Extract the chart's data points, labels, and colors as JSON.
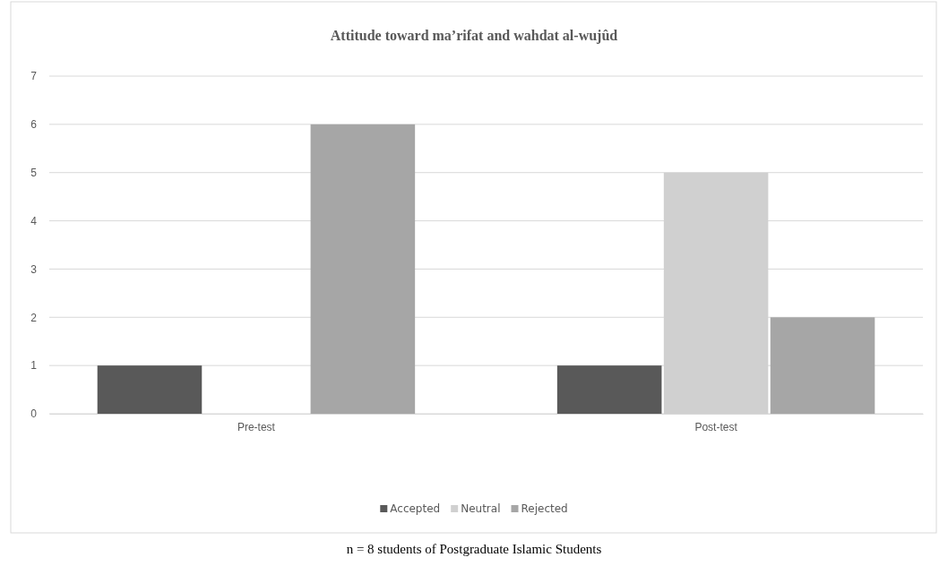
{
  "chart_data": {
    "type": "bar",
    "title": "Attitude toward ma’rifat and wahdat al-wujûd",
    "categories": [
      "Pre-test",
      "Post-test"
    ],
    "series": [
      {
        "name": "Accepted",
        "color": "#595959",
        "values": [
          1,
          1
        ]
      },
      {
        "name": "Neutral",
        "color": "#d0d0d0",
        "values": [
          0,
          5
        ]
      },
      {
        "name": "Rejected",
        "color": "#a6a6a6",
        "values": [
          6,
          2
        ]
      }
    ],
    "ylim": [
      0,
      7
    ],
    "yticks": [
      0,
      1,
      2,
      3,
      4,
      5,
      6,
      7
    ],
    "grid": "y",
    "legend": "bottom",
    "annotations": [
      "n = 8 students of Postgraduate Islamic Students"
    ]
  }
}
